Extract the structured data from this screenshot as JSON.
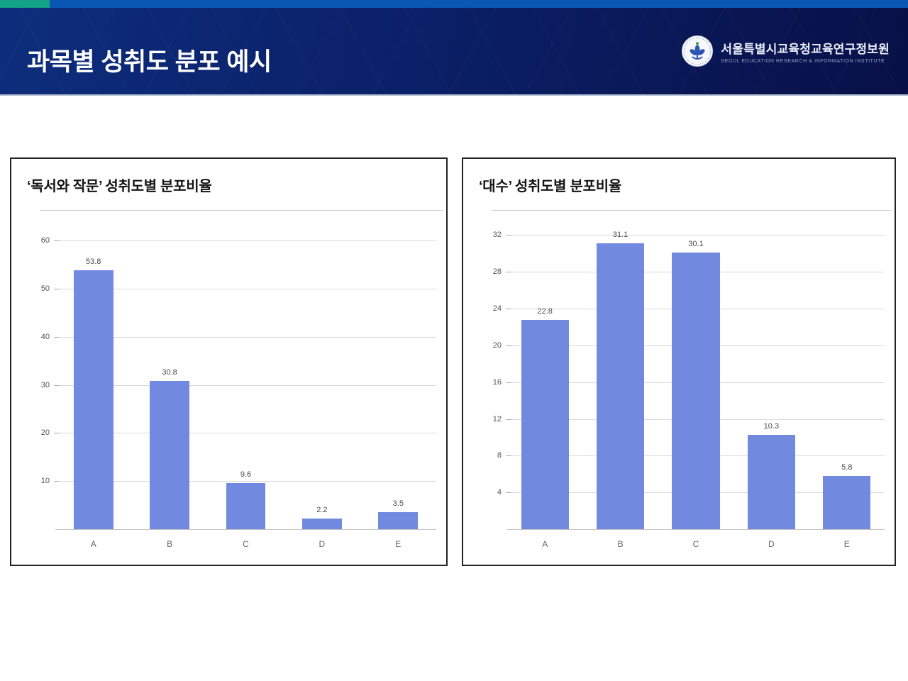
{
  "theme": {
    "teal_accent": "#12A285",
    "strip_blue": "#0A57B3",
    "header_navy_dark": "#081047",
    "header_navy_mid": "#0C2B78",
    "bar_blue": "#7289E0"
  },
  "header": {
    "title": "과목별 성취도 분포 예시",
    "logo": {
      "org_name_ko": "서울특별시교육청교육연구정보원",
      "org_name_en": "SEOUL EDUCATION RESEARCH & INFORMATION INSTITUTE"
    }
  },
  "chart_data": [
    {
      "type": "bar",
      "title": "‘독서와 작문’ 성취도별 분포비율",
      "categories": [
        "A",
        "B",
        "C",
        "D",
        "E"
      ],
      "values": [
        53.8,
        30.8,
        9.6,
        2.2,
        3.5
      ],
      "value_labels": [
        "53.8",
        "30.8",
        "9.6",
        "2.2",
        "3.5"
      ],
      "yticks": [
        10,
        20,
        30,
        40,
        50,
        60
      ],
      "ylim": [
        0,
        64
      ],
      "grid": true,
      "legend": "none",
      "bar_color": "#7289E0",
      "bar_width_frac": 0.52
    },
    {
      "type": "bar",
      "title": "‘대수’ 성취도별 분포비율",
      "categories": [
        "A",
        "B",
        "C",
        "D",
        "E"
      ],
      "values": [
        22.8,
        31.1,
        30.1,
        10.3,
        5.8
      ],
      "value_labels": [
        "22.8",
        "31.1",
        "30.1",
        "10.3",
        "5.8"
      ],
      "yticks": [
        4,
        8,
        12,
        16,
        20,
        24,
        28,
        32
      ],
      "ylim": [
        0,
        33.5
      ],
      "grid": true,
      "legend": "none",
      "bar_color": "#7289E0",
      "bar_width_frac": 0.63
    }
  ]
}
